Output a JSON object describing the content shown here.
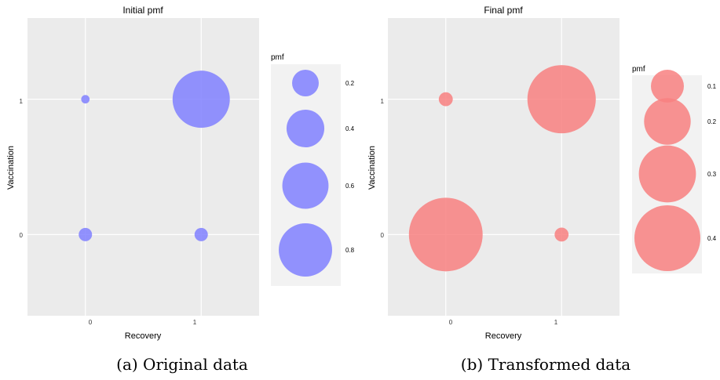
{
  "chart_data": [
    {
      "type": "scatter",
      "subtype": "bubble",
      "title": "Initial pmf",
      "xlabel": "Recovery",
      "ylabel": "Vaccination",
      "x_ticks": [
        "0",
        "1"
      ],
      "y_ticks": [
        "0",
        "1"
      ],
      "xlim": [
        -0.5,
        1.5
      ],
      "ylim": [
        -0.6,
        1.6
      ],
      "grid": true,
      "color": "#8080ff",
      "points": [
        {
          "x": 0,
          "y": 1,
          "pmf": 0.02
        },
        {
          "x": 1,
          "y": 1,
          "pmf": 0.92
        },
        {
          "x": 0,
          "y": 0,
          "pmf": 0.05
        },
        {
          "x": 1,
          "y": 0,
          "pmf": 0.05
        }
      ],
      "legend": {
        "title": "pmf",
        "placement": "right",
        "entries": [
          {
            "value": 0.2,
            "label": "0.2"
          },
          {
            "value": 0.4,
            "label": "0.4"
          },
          {
            "value": 0.6,
            "label": "0.6"
          },
          {
            "value": 0.8,
            "label": "0.8"
          }
        ]
      },
      "caption": "(a) Original data"
    },
    {
      "type": "scatter",
      "subtype": "bubble",
      "title": "Final pmf",
      "xlabel": "Recovery",
      "ylabel": "Vaccination",
      "x_ticks": [
        "0",
        "1"
      ],
      "y_ticks": [
        "0",
        "1"
      ],
      "xlim": [
        -0.5,
        1.5
      ],
      "ylim": [
        -0.6,
        1.6
      ],
      "grid": true,
      "color": "#f88080",
      "points": [
        {
          "x": 0,
          "y": 1,
          "pmf": 0.018
        },
        {
          "x": 1,
          "y": 1,
          "pmf": 0.43
        },
        {
          "x": 0,
          "y": 0,
          "pmf": 0.5
        },
        {
          "x": 1,
          "y": 0,
          "pmf": 0.018
        }
      ],
      "legend": {
        "title": "pmf",
        "placement": "right",
        "entries": [
          {
            "value": 0.1,
            "label": "0.1"
          },
          {
            "value": 0.2,
            "label": "0.2"
          },
          {
            "value": 0.3,
            "label": "0.3"
          },
          {
            "value": 0.4,
            "label": "0.4"
          }
        ]
      },
      "caption": "(b) Transformed data"
    }
  ]
}
